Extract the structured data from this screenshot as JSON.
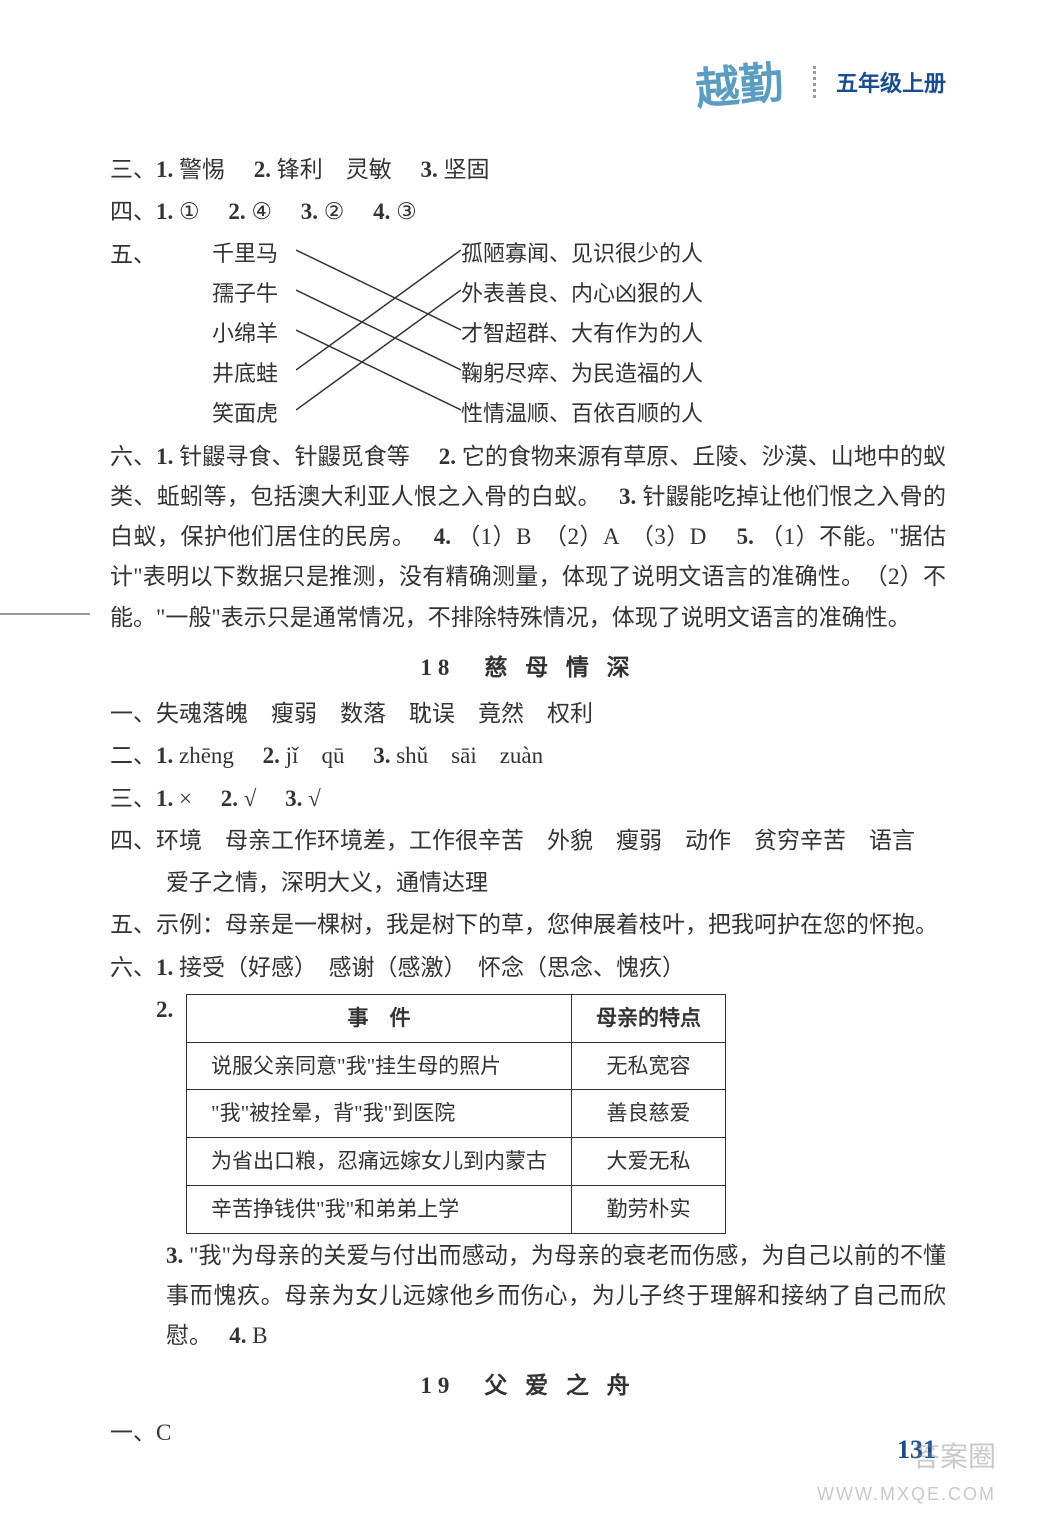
{
  "header": {
    "logo": "越勤",
    "grade": "五年级上册"
  },
  "sec3": {
    "label": "三、",
    "items": [
      {
        "n": "1.",
        "t": "警惕"
      },
      {
        "n": "2.",
        "t": "锋利　灵敏"
      },
      {
        "n": "3.",
        "t": "坚固"
      }
    ]
  },
  "sec4": {
    "label": "四、",
    "items": [
      {
        "n": "1.",
        "t": "①"
      },
      {
        "n": "2.",
        "t": "④"
      },
      {
        "n": "3.",
        "t": "②"
      },
      {
        "n": "4.",
        "t": "③"
      }
    ]
  },
  "sec5": {
    "label": "五、",
    "left": [
      "千里马",
      "孺子牛",
      "小绵羊",
      "井底蛙",
      "笑面虎"
    ],
    "right": [
      "孤陋寡闻、见识很少的人",
      "外表善良、内心凶狠的人",
      "才智超群、大有作为的人",
      "鞠躬尽瘁、为民造福的人",
      "性情温顺、百依百顺的人"
    ],
    "edges": [
      [
        0,
        2
      ],
      [
        1,
        3
      ],
      [
        2,
        4
      ],
      [
        3,
        0
      ],
      [
        4,
        1
      ]
    ]
  },
  "sec6": {
    "label": "六、",
    "text1": "针鼹寻食、针鼹觅食等　",
    "n2": "2.",
    "text2": "它的食物来源有草原、丘陵、沙漠、山地中的蚁类、蚯蚓等，包括澳大利亚人恨之入骨的白蚁。　",
    "n3": "3.",
    "text3": "针鼹能吃掉让他们恨之入骨的白蚁，保护他们居住的民房。　",
    "n4": "4.",
    "text4": "（1）B　（2）A　（3）D　",
    "n5": "5.",
    "text5a": "（1）不能。\"据估计\"表明以下数据只是推测，没有精确测量，体现了说明文语言的准确性。　（2）不能。\"一般\"表示只是通常情况，不排除特殊情况，体现了说明文语言的准确性。"
  },
  "title18": "18　慈 母 情 深",
  "l18_1": {
    "label": "一、",
    "t": "失魂落魄　瘦弱　数落　耽误　竟然　权利"
  },
  "l18_2": {
    "label": "二、",
    "items": [
      {
        "n": "1.",
        "t": "zhēng"
      },
      {
        "n": "2.",
        "t": "jǐ　qū"
      },
      {
        "n": "3.",
        "t": "shǔ　sāi　zuàn"
      }
    ]
  },
  "l18_3": {
    "label": "三、",
    "items": [
      {
        "n": "1.",
        "t": "×"
      },
      {
        "n": "2.",
        "t": "√"
      },
      {
        "n": "3.",
        "t": "√"
      }
    ]
  },
  "l18_4": {
    "label": "四、",
    "t1": "环境　母亲工作环境差，工作很辛苦　外貌　瘦弱　动作　贫穷辛苦　语言",
    "t2": "爱子之情，深明大义，通情达理"
  },
  "l18_5": {
    "label": "五、",
    "t": "示例：母亲是一棵树，我是树下的草，您伸展着枝叶，把我呵护在您的怀抱。"
  },
  "l18_6": {
    "label": "六、",
    "n1": "1.",
    "t1": "接受（好感）　感谢（感激）　怀念（思念、愧疚）",
    "n2": "2.",
    "table": {
      "head": [
        "事　件",
        "母亲的特点"
      ],
      "rows": [
        [
          "说服父亲同意\"我\"挂生母的照片",
          "无私宽容"
        ],
        [
          "\"我\"被拴晕，背\"我\"到医院",
          "善良慈爱"
        ],
        [
          "为省出口粮，忍痛远嫁女儿到内蒙古",
          "大爱无私"
        ],
        [
          "辛苦挣钱供\"我\"和弟弟上学",
          "勤劳朴实"
        ]
      ]
    },
    "n3": "3.",
    "t3": "\"我\"为母亲的关爱与付出而感动，为母亲的衰老而伤感，为自己以前的不懂事而愧疚。母亲为女儿远嫁他乡而伤心，为儿子终于理解和接纳了自己而欣慰。　",
    "n4": "4.",
    "t4": "B"
  },
  "title19": "19　父 爱 之 舟",
  "l19_1": {
    "label": "一、",
    "t": "C"
  },
  "pagenum": "131",
  "wm1": "答案圈",
  "wm2": "WWW.MXQE.COM"
}
